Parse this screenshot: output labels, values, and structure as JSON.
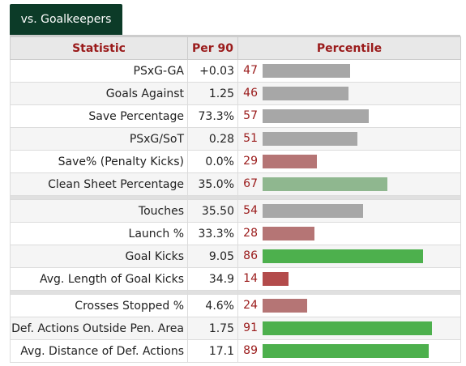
{
  "tab": {
    "label": "vs. Goalkeepers"
  },
  "headers": [
    "Statistic",
    "Per 90",
    "Percentile"
  ],
  "groups": [
    [
      {
        "statistic": "PSxG-GA",
        "per90": "+0.03",
        "percentile": 47
      },
      {
        "statistic": "Goals Against",
        "per90": "1.25",
        "percentile": 46
      },
      {
        "statistic": "Save Percentage",
        "per90": "73.3%",
        "percentile": 57
      },
      {
        "statistic": "PSxG/SoT",
        "per90": "0.28",
        "percentile": 51
      },
      {
        "statistic": "Save% (Penalty Kicks)",
        "per90": "0.0%",
        "percentile": 29
      },
      {
        "statistic": "Clean Sheet Percentage",
        "per90": "35.0%",
        "percentile": 67
      }
    ],
    [
      {
        "statistic": "Touches",
        "per90": "35.50",
        "percentile": 54
      },
      {
        "statistic": "Launch %",
        "per90": "33.3%",
        "percentile": 28
      },
      {
        "statistic": "Goal Kicks",
        "per90": "9.05",
        "percentile": 86
      },
      {
        "statistic": "Avg. Length of Goal Kicks",
        "per90": "34.9",
        "percentile": 14
      }
    ],
    [
      {
        "statistic": "Crosses Stopped %",
        "per90": "4.6%",
        "percentile": 24
      },
      {
        "statistic": "Def. Actions Outside Pen. Area",
        "per90": "1.75",
        "percentile": 91
      },
      {
        "statistic": "Avg. Distance of Def. Actions",
        "per90": "17.1",
        "percentile": 89
      }
    ]
  ]
}
